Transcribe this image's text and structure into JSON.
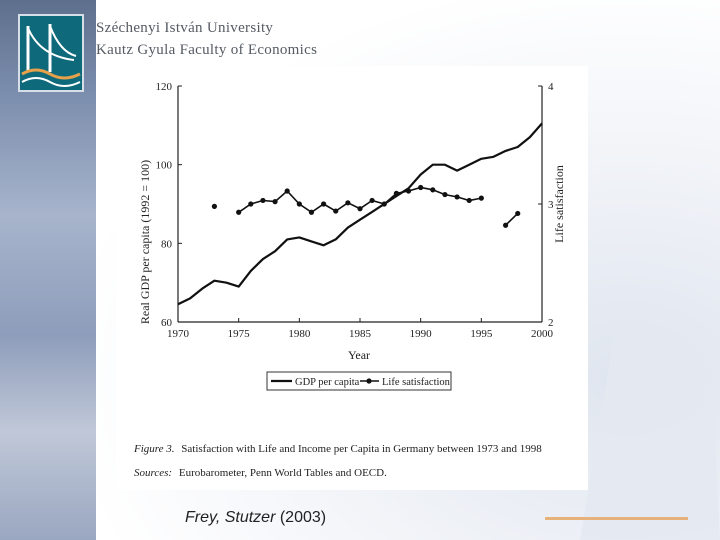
{
  "header": {
    "university": "Széchenyi István University",
    "faculty": "Kautz Gyula Faculty of Economics"
  },
  "citation": {
    "authors": "Frey, Stutzer",
    "year": "(2003)"
  },
  "colors": {
    "accent_line": "#e6b27a",
    "logo": "#0e6a7a"
  },
  "chart_data": {
    "type": "line",
    "caption_label": "Figure 3.",
    "caption_text": "Satisfaction with Life and Income per Capita in Germany between 1973 and 1998",
    "sources_label": "Sources:",
    "sources_text": "Eurobarometer, Penn World Tables and OECD.",
    "xlabel": "Year",
    "ylabel_left": "Real GDP per capita (1992 = 100)",
    "ylabel_right": "Life satisfaction",
    "xlim": [
      1970,
      2000
    ],
    "ylim_left": [
      60,
      120
    ],
    "ylim_right": [
      2,
      4
    ],
    "x_ticks": [
      1970,
      1975,
      1980,
      1985,
      1990,
      1995,
      2000
    ],
    "y_ticks_left": [
      60,
      80,
      100,
      120
    ],
    "y_ticks_right": [
      2,
      3,
      4
    ],
    "legend": [
      "GDP per capita",
      "Life satisfaction"
    ],
    "series": [
      {
        "name": "GDP per capita",
        "axis": "left",
        "x": [
          1970,
          1971,
          1972,
          1973,
          1974,
          1975,
          1976,
          1977,
          1978,
          1979,
          1980,
          1981,
          1982,
          1983,
          1984,
          1985,
          1986,
          1987,
          1988,
          1989,
          1990,
          1991,
          1992,
          1993,
          1994,
          1995,
          1996,
          1997,
          1998,
          1999,
          2000
        ],
        "values": [
          64.5,
          66,
          68.5,
          70.5,
          70,
          69,
          73,
          76,
          78,
          81,
          81.5,
          80.5,
          79.5,
          81,
          84,
          86,
          88,
          90,
          92,
          94,
          97.5,
          100,
          100,
          98.5,
          100,
          101.5,
          102,
          103.5,
          104.5,
          107,
          110.5
        ]
      },
      {
        "name": "Life satisfaction",
        "axis": "right",
        "markers": true,
        "segments": [
          {
            "x": [
              1973
            ],
            "values": [
              2.98
            ]
          },
          {
            "x": [
              1975,
              1976,
              1977,
              1978,
              1979,
              1980,
              1981,
              1982,
              1983,
              1984,
              1985,
              1986,
              1987,
              1988,
              1989,
              1990,
              1991,
              1992,
              1993,
              1994,
              1995
            ],
            "values": [
              2.93,
              3.0,
              3.03,
              3.02,
              3.11,
              3.0,
              2.93,
              3.0,
              2.94,
              3.01,
              2.96,
              3.03,
              3.0,
              3.09,
              3.11,
              3.14,
              3.12,
              3.08,
              3.06,
              3.03,
              3.05
            ]
          },
          {
            "x": [
              1997,
              1998
            ],
            "values": [
              2.82,
              2.92
            ]
          }
        ]
      }
    ]
  }
}
